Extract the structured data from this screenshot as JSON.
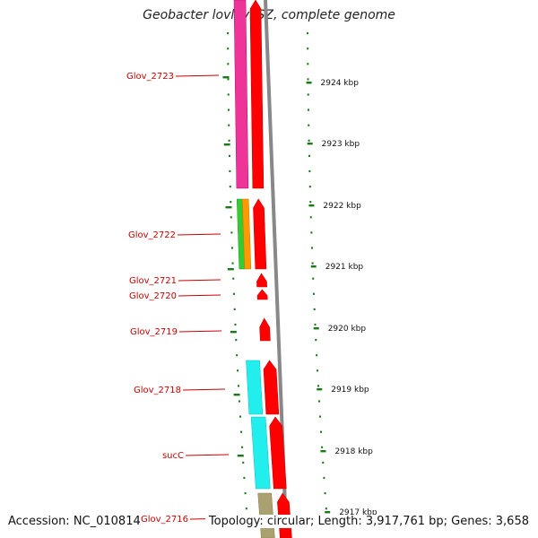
{
  "title": "Geobacter lovleyi SZ, complete genome",
  "accession": "Accession: NC_010814",
  "topology": "Topology: circular; Length: 3,917,761 bp; Genes: 3,658",
  "colors": {
    "gene_label": "#cc0000",
    "tick": "#1a7a1a",
    "backbone": "#888888",
    "cds_arrow": "#ff0000",
    "magenta": "#ee3399",
    "green": "#33cc33",
    "orange": "#ff9900",
    "cyan": "#22eeee",
    "olive": "#aaa070"
  },
  "kbp_labels": [
    "2924 kbp",
    "2923 kbp",
    "2922 kbp",
    "2921 kbp",
    "2920 kbp",
    "2919 kbp",
    "2918 kbp",
    "2917 kbp"
  ],
  "genes": [
    "Glov_2723",
    "Glov_2722",
    "Glov_2721",
    "Glov_2720",
    "Glov_2719",
    "Glov_2718",
    "sucC",
    "Glov_2716"
  ]
}
